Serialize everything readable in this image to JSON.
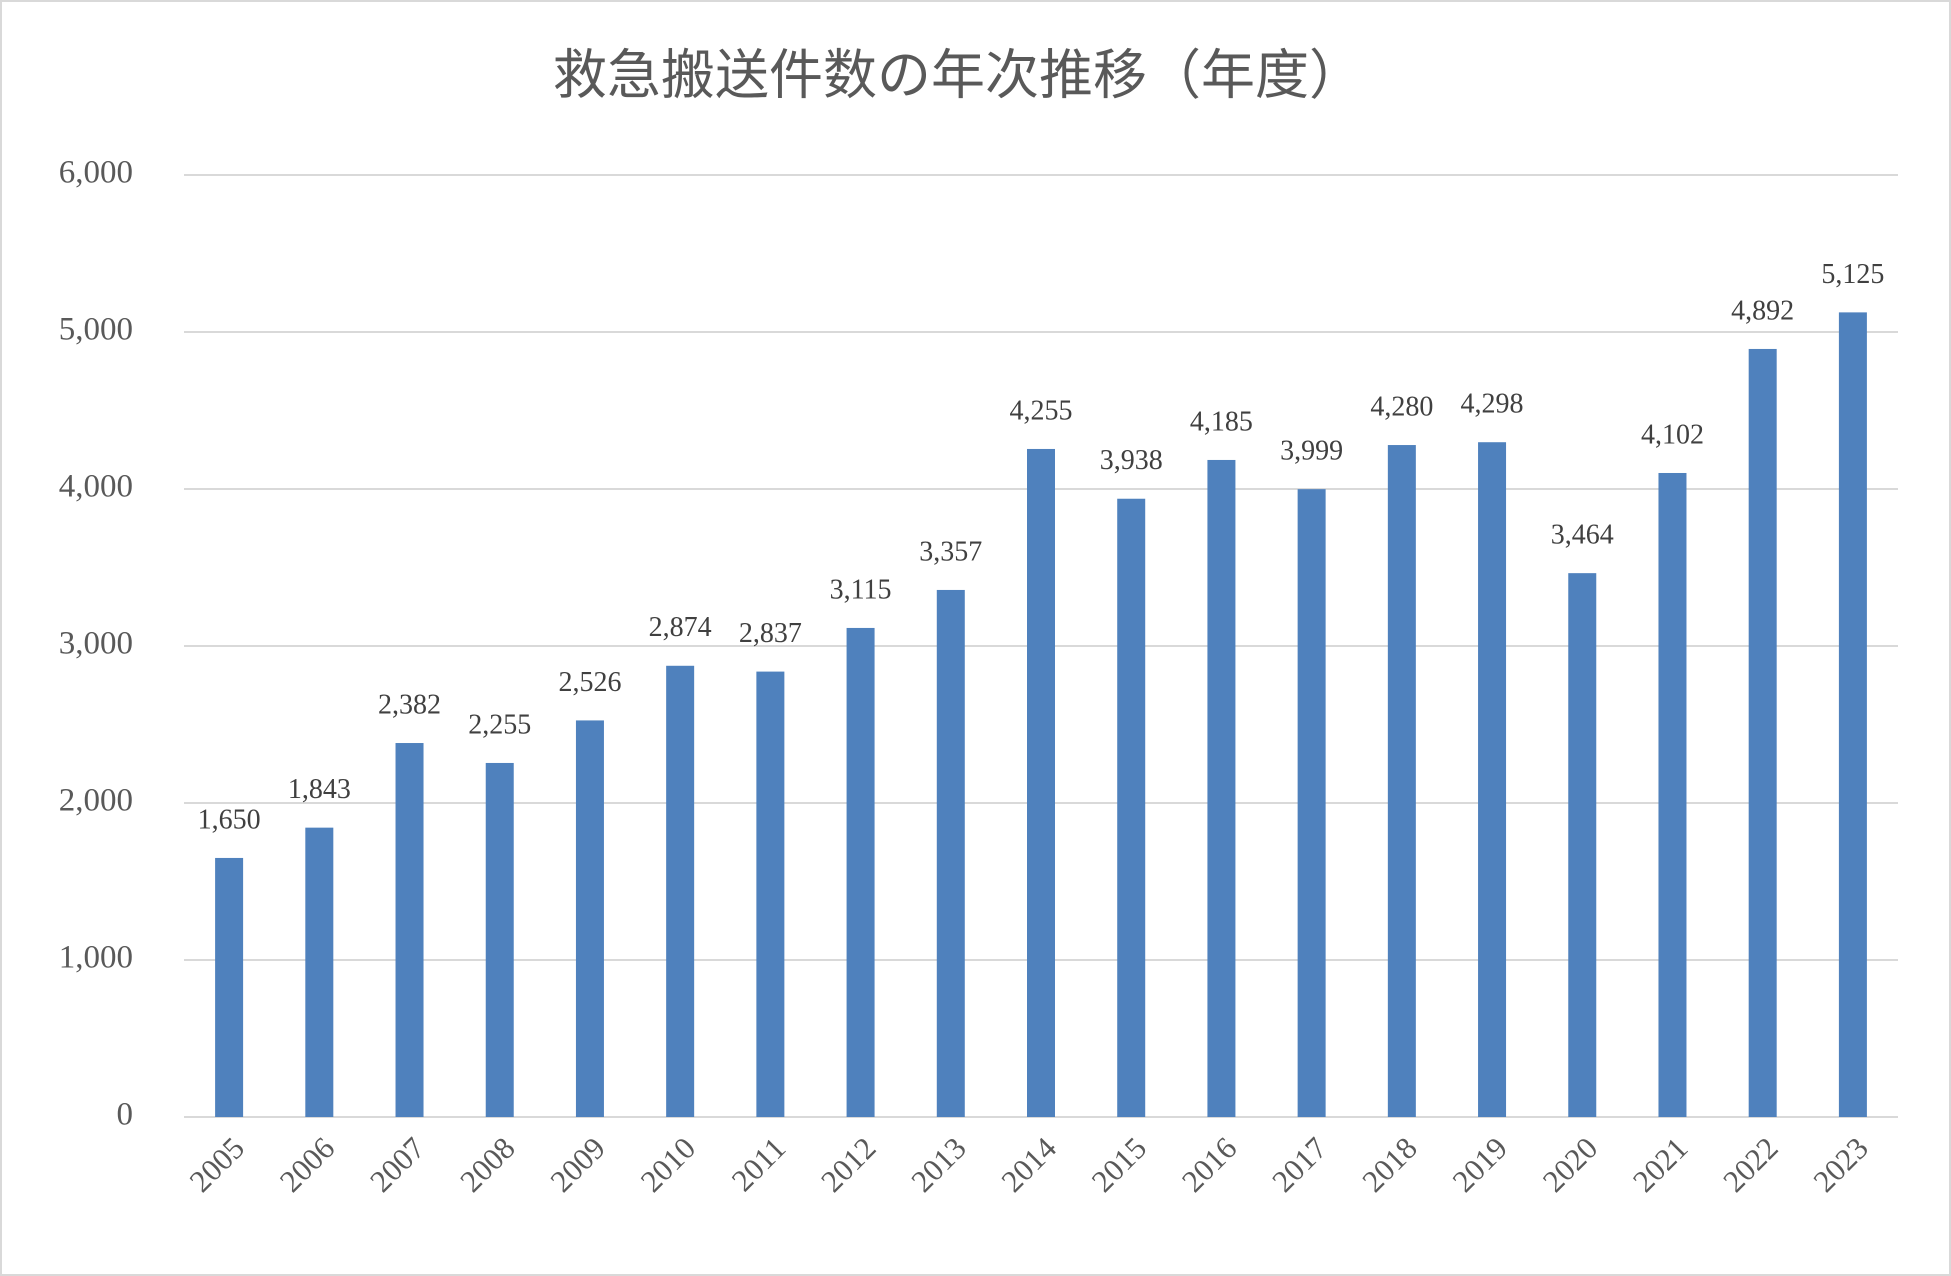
{
  "chart_data": {
    "type": "bar",
    "title": "救急搬送件数の年次推移（年度）",
    "categories": [
      "2005",
      "2006",
      "2007",
      "2008",
      "2009",
      "2010",
      "2011",
      "2012",
      "2013",
      "2014",
      "2015",
      "2016",
      "2017",
      "2018",
      "2019",
      "2020",
      "2021",
      "2022",
      "2023"
    ],
    "values": [
      1650,
      1843,
      2382,
      2255,
      2526,
      2874,
      2837,
      3115,
      3357,
      4255,
      3938,
      4185,
      3999,
      4280,
      4298,
      3464,
      4102,
      4892,
      5125
    ],
    "value_labels": [
      "1,650",
      "1,843",
      "2,382",
      "2,255",
      "2,526",
      "2,874",
      "2,837",
      "3,115",
      "3,357",
      "4,255",
      "3,938",
      "4,185",
      "3,999",
      "4,280",
      "4,298",
      "3,464",
      "4,102",
      "4,892",
      "5,125"
    ],
    "color": "#4f81bd",
    "ylim": [
      0,
      6000
    ],
    "yticks": [
      0,
      {
        "value": 1000,
        "label": "1,000"
      },
      {
        "value": 2000,
        "label": "2,000"
      },
      {
        "value": 3000,
        "label": "3,000"
      },
      {
        "value": 4000,
        "label": "4,000"
      },
      {
        "value": 5000,
        "label": "5,000"
      },
      {
        "value": 6000,
        "label": "6,000"
      }
    ],
    "grid": true
  }
}
